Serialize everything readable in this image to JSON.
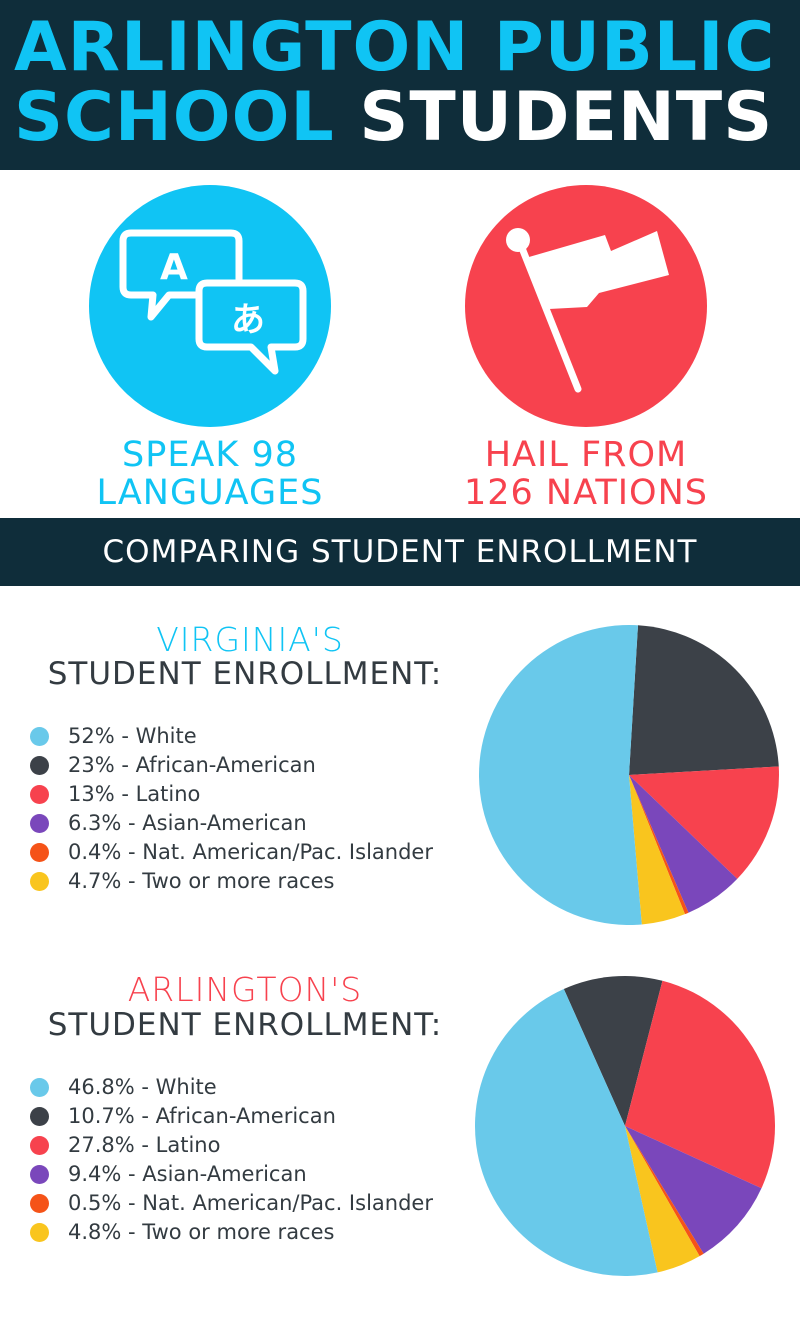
{
  "header": {
    "title_line1_accent": "ARLINGTON PUBLIC",
    "title_line2_accent": "SCHOOL",
    "title_line2_plain": "STUDENTS"
  },
  "icons": {
    "language": "translate-speech-bubbles-icon",
    "nations": "flag-icon",
    "bubble_a": "A",
    "bubble_jp": "あ"
  },
  "stats": {
    "languages": [
      "SPEAK 98",
      "LANGUAGES"
    ],
    "nations": [
      "HAIL FROM",
      "126 NATIONS"
    ]
  },
  "section_title": "COMPARING STUDENT ENROLLMENT",
  "colors": {
    "navy": "#0f2d3a",
    "blue": "#10c4f4",
    "red": "#f7424e",
    "text": "#333b41"
  },
  "chart_data": [
    {
      "type": "pie",
      "title": "VIRGINIA'S",
      "subtitle": "STUDENT ENROLLMENT:",
      "title_color": "#10c4f4",
      "categories": [
        "White",
        "African-American",
        "Latino",
        "Asian-American",
        "Nat. American/Pac. Islander",
        "Two or more races"
      ],
      "values": [
        52,
        23,
        13,
        6.3,
        0.4,
        4.7
      ],
      "labels": [
        "52% - White",
        "23% - African-American",
        "13% - Latino",
        "6.3% - Asian-American",
        "0.4% - Nat. American/Pac. Islander",
        "4.7% - Two or more races"
      ],
      "colors": [
        "#69c9ea",
        "#3c4148",
        "#f7424e",
        "#7a47bb",
        "#f55318",
        "#f9c51e"
      ],
      "legend_position": "left"
    },
    {
      "type": "pie",
      "title": "ARLINGTON'S",
      "subtitle": "STUDENT ENROLLMENT:",
      "title_color": "#f7424e",
      "categories": [
        "White",
        "African-American",
        "Latino",
        "Asian-American",
        "Nat. American/Pac. Islander",
        "Two or more races"
      ],
      "values": [
        46.8,
        10.7,
        27.8,
        9.4,
        0.5,
        4.8
      ],
      "labels": [
        "46.8% - White",
        "10.7% - African-American",
        "27.8% - Latino",
        "9.4% - Asian-American",
        "0.5% - Nat. American/Pac. Islander",
        "4.8% - Two or more races"
      ],
      "colors": [
        "#69c9ea",
        "#3c4148",
        "#f7424e",
        "#7a47bb",
        "#f55318",
        "#f9c51e"
      ],
      "legend_position": "left"
    }
  ]
}
